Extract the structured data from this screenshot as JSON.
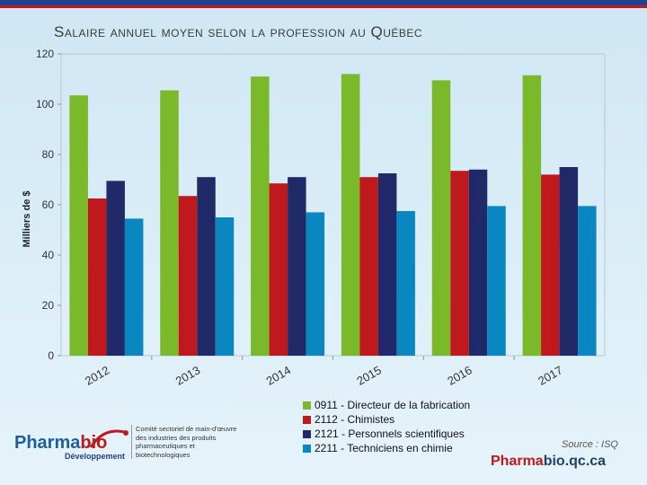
{
  "title": "Salaire annuel moyen selon la profession au Québec",
  "chart_data": {
    "type": "bar",
    "categories": [
      "2012",
      "2013",
      "2014",
      "2015",
      "2016",
      "2017"
    ],
    "series": [
      {
        "name": "0911 - Directeur de la fabrication",
        "color": "#7ab929",
        "values": [
          103.5,
          105.5,
          111,
          112,
          109.5,
          111.5
        ]
      },
      {
        "name": "2112 - Chimistes",
        "color": "#c0191d",
        "values": [
          62.5,
          63.5,
          68.5,
          71,
          73.5,
          72
        ]
      },
      {
        "name": "2121 - Personnels scientifiques",
        "color": "#202a68",
        "values": [
          69.5,
          71,
          71,
          72.5,
          74,
          75
        ]
      },
      {
        "name": "2211 - Techniciens en chimie",
        "color": "#0a86c1",
        "values": [
          54.5,
          55,
          57,
          57.5,
          59.5,
          59.5
        ]
      }
    ],
    "ylabel": "Milliers de $",
    "ylim": [
      0,
      120
    ],
    "yticks": [
      0,
      20,
      40,
      60,
      80,
      100,
      120
    ],
    "legend_position": "bottom"
  },
  "source": "Source : ISQ",
  "logo": {
    "word_main": "Pharma",
    "word_accent": "bio",
    "subtitle": "Développement",
    "description": "Comité sectoriel de main-d'œuvre des industries des produits pharmaceutiques et biotechnologiques"
  },
  "site": {
    "accent": "Pharma",
    "rest": "bio.qc.ca"
  }
}
